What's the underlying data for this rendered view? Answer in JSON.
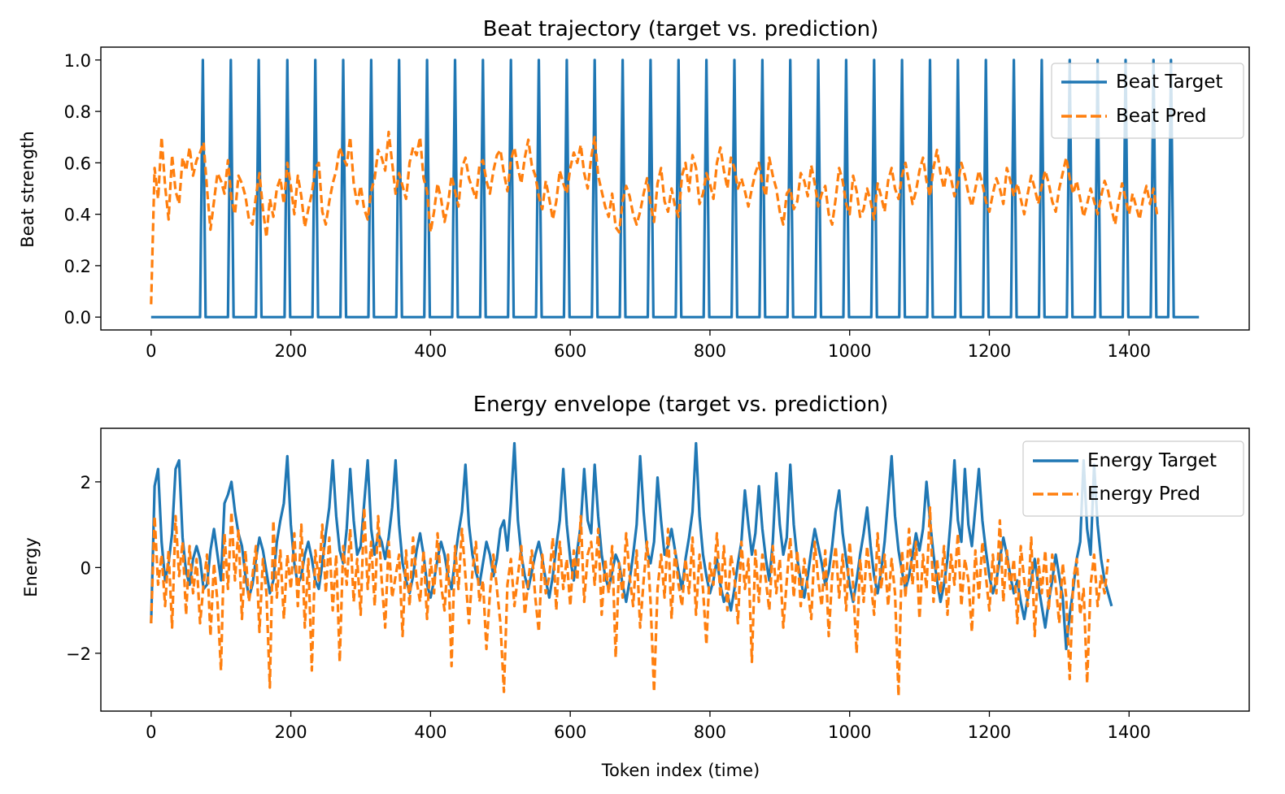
{
  "chart_data": [
    {
      "type": "line",
      "title": "Beat trajectory (target vs. prediction)",
      "xlabel": "",
      "ylabel": "Beat strength",
      "xlim": [
        -72,
        1572
      ],
      "ylim": [
        -0.05,
        1.05
      ],
      "x_ticks": [
        0,
        200,
        400,
        600,
        800,
        1000,
        1200,
        1400
      ],
      "y_ticks": [
        0.0,
        0.2,
        0.4,
        0.6,
        0.8,
        1.0
      ],
      "y_tick_labels": [
        "0.0",
        "0.2",
        "0.4",
        "0.6",
        "0.8",
        "1.0"
      ],
      "grid": false,
      "legend_position": "top-right",
      "target": {
        "name": "Beat Target",
        "color": "#1f77b4",
        "style": "solid",
        "baseline": 0.0,
        "peak": 1.0,
        "peak_x": [
          74,
          114,
          154,
          195,
          235,
          275,
          315,
          355,
          395,
          435,
          475,
          515,
          555,
          595,
          635,
          675,
          715,
          755,
          795,
          835,
          875,
          915,
          955,
          995,
          1035,
          1075,
          1115,
          1155,
          1195,
          1235,
          1275,
          1315,
          1355,
          1395,
          1435,
          1460
        ],
        "x_end": 1500
      },
      "prediction": {
        "name": "Beat Pred",
        "color": "#ff7f0e",
        "style": "dashed",
        "x_step": 5,
        "values": [
          0.05,
          0.58,
          0.46,
          0.7,
          0.51,
          0.38,
          0.63,
          0.49,
          0.44,
          0.62,
          0.57,
          0.66,
          0.55,
          0.61,
          0.64,
          0.68,
          0.5,
          0.34,
          0.45,
          0.56,
          0.53,
          0.48,
          0.61,
          0.46,
          0.4,
          0.55,
          0.52,
          0.47,
          0.38,
          0.36,
          0.47,
          0.56,
          0.42,
          0.31,
          0.46,
          0.39,
          0.5,
          0.54,
          0.44,
          0.6,
          0.51,
          0.4,
          0.55,
          0.47,
          0.35,
          0.42,
          0.48,
          0.58,
          0.6,
          0.41,
          0.36,
          0.45,
          0.52,
          0.57,
          0.66,
          0.62,
          0.59,
          0.7,
          0.52,
          0.44,
          0.51,
          0.42,
          0.38,
          0.49,
          0.54,
          0.65,
          0.62,
          0.57,
          0.72,
          0.6,
          0.48,
          0.56,
          0.51,
          0.46,
          0.6,
          0.66,
          0.63,
          0.7,
          0.54,
          0.49,
          0.33,
          0.41,
          0.52,
          0.46,
          0.37,
          0.44,
          0.55,
          0.49,
          0.43,
          0.58,
          0.62,
          0.54,
          0.5,
          0.46,
          0.59,
          0.61,
          0.53,
          0.48,
          0.57,
          0.63,
          0.65,
          0.56,
          0.49,
          0.61,
          0.66,
          0.58,
          0.52,
          0.62,
          0.69,
          0.59,
          0.55,
          0.47,
          0.42,
          0.53,
          0.46,
          0.38,
          0.45,
          0.57,
          0.52,
          0.48,
          0.58,
          0.64,
          0.6,
          0.67,
          0.56,
          0.5,
          0.62,
          0.7,
          0.55,
          0.49,
          0.43,
          0.39,
          0.48,
          0.35,
          0.33,
          0.45,
          0.51,
          0.47,
          0.4,
          0.36,
          0.41,
          0.48,
          0.54,
          0.44,
          0.37,
          0.52,
          0.58,
          0.45,
          0.41,
          0.5,
          0.43,
          0.39,
          0.55,
          0.6,
          0.49,
          0.63,
          0.58,
          0.44,
          0.48,
          0.56,
          0.52,
          0.46,
          0.6,
          0.66,
          0.57,
          0.5,
          0.62,
          0.58,
          0.5,
          0.54,
          0.49,
          0.43,
          0.5,
          0.56,
          0.6,
          0.52,
          0.47,
          0.62,
          0.55,
          0.5,
          0.41,
          0.36,
          0.48,
          0.5,
          0.42,
          0.45,
          0.56,
          0.53,
          0.47,
          0.59,
          0.52,
          0.43,
          0.48,
          0.51,
          0.4,
          0.36,
          0.46,
          0.58,
          0.53,
          0.44,
          0.4,
          0.55,
          0.49,
          0.39,
          0.42,
          0.5,
          0.45,
          0.38,
          0.52,
          0.47,
          0.41,
          0.53,
          0.58,
          0.5,
          0.46,
          0.55,
          0.6,
          0.52,
          0.44,
          0.49,
          0.57,
          0.62,
          0.53,
          0.47,
          0.58,
          0.65,
          0.56,
          0.5,
          0.59,
          0.54,
          0.47,
          0.52,
          0.6,
          0.55,
          0.48,
          0.43,
          0.5,
          0.57,
          0.52,
          0.45,
          0.41,
          0.48,
          0.54,
          0.5,
          0.44,
          0.58,
          0.53,
          0.47,
          0.52,
          0.46,
          0.4,
          0.48,
          0.55,
          0.5,
          0.44,
          0.51,
          0.57,
          0.52,
          0.45,
          0.41,
          0.5,
          0.56,
          0.62,
          0.54,
          0.48,
          0.53,
          0.46,
          0.39,
          0.44,
          0.5,
          0.45,
          0.4,
          0.47,
          0.53,
          0.49,
          0.42,
          0.36,
          0.45,
          0.52,
          0.46,
          0.4,
          0.48,
          0.43,
          0.38,
          0.46,
          0.51,
          0.44,
          0.5,
          0.4
        ]
      }
    },
    {
      "type": "line",
      "title": "Energy envelope (target vs. prediction)",
      "xlabel": "Token index (time)",
      "ylabel": "Energy",
      "xlim": [
        -72,
        1572
      ],
      "ylim": [
        -3.35,
        3.25
      ],
      "x_ticks": [
        0,
        200,
        400,
        600,
        800,
        1000,
        1200,
        1400
      ],
      "y_ticks": [
        -2,
        0,
        2
      ],
      "y_tick_labels": [
        "−2",
        "0",
        "2"
      ],
      "grid": false,
      "legend_position": "top-right",
      "target": {
        "name": "Energy Target",
        "color": "#1f77b4",
        "style": "solid",
        "x_step": 5,
        "values": [
          -1.3,
          1.9,
          2.3,
          0.6,
          -0.3,
          0.1,
          0.8,
          2.3,
          2.5,
          0.7,
          -0.1,
          -0.4,
          0.2,
          0.5,
          0.2,
          -0.5,
          -0.4,
          0.4,
          0.9,
          0.3,
          -0.3,
          1.5,
          1.7,
          2.0,
          1.3,
          0.8,
          0.5,
          -0.2,
          -0.7,
          -0.4,
          0.2,
          0.7,
          0.4,
          -0.1,
          -0.6,
          -0.3,
          0.6,
          1.1,
          1.5,
          2.6,
          1.0,
          0.1,
          -0.4,
          -0.2,
          0.3,
          0.6,
          0.2,
          -0.3,
          -0.5,
          0.1,
          0.8,
          1.4,
          2.5,
          1.2,
          0.4,
          0.1,
          0.9,
          2.3,
          1.1,
          0.3,
          0.5,
          1.5,
          2.5,
          0.9,
          0.3,
          0.8,
          0.6,
          0.2,
          0.7,
          1.4,
          2.5,
          1.0,
          0.1,
          -0.3,
          -0.6,
          -0.2,
          0.4,
          0.8,
          0.3,
          -0.4,
          -0.7,
          -0.3,
          0.2,
          0.6,
          0.3,
          -0.2,
          -0.5,
          0.2,
          0.8,
          1.3,
          2.4,
          1.0,
          0.3,
          -0.1,
          -0.4,
          0.1,
          0.6,
          0.3,
          -0.2,
          0.2,
          0.9,
          1.1,
          0.4,
          1.5,
          2.9,
          1.1,
          0.3,
          -0.2,
          -0.5,
          -0.1,
          0.3,
          0.6,
          0.2,
          -0.3,
          -0.7,
          -0.2,
          0.5,
          1.1,
          2.3,
          1.0,
          0.2,
          -0.3,
          0.4,
          1.0,
          2.3,
          1.1,
          0.8,
          2.4,
          1.2,
          0.3,
          -0.2,
          -0.5,
          -0.1,
          0.3,
          0.1,
          -0.4,
          -0.8,
          -0.3,
          0.3,
          1.0,
          2.6,
          1.3,
          0.4,
          0.1,
          0.6,
          2.1,
          1.1,
          0.3,
          0.5,
          0.9,
          0.4,
          -0.1,
          -0.5,
          0.2,
          0.7,
          1.3,
          2.9,
          1.2,
          0.3,
          -0.2,
          -0.6,
          -0.3,
          0.2,
          -0.4,
          -0.8,
          -0.6,
          -1.0,
          -0.5,
          0.1,
          0.6,
          1.8,
          1.0,
          0.3,
          0.8,
          1.9,
          0.9,
          0.2,
          -0.3,
          0.6,
          2.2,
          1.0,
          0.3,
          0.7,
          2.4,
          1.0,
          0.2,
          -0.3,
          -0.7,
          -0.2,
          0.4,
          0.9,
          0.5,
          0.1,
          -0.4,
          -0.1,
          0.5,
          1.3,
          1.8,
          0.8,
          0.2,
          -0.4,
          -0.8,
          -0.3,
          0.3,
          0.8,
          1.4,
          0.5,
          -0.2,
          -0.6,
          -0.1,
          0.6,
          1.6,
          2.6,
          1.2,
          0.4,
          -0.1,
          -0.5,
          -0.2,
          0.3,
          0.8,
          0.4,
          0.9,
          2.0,
          1.1,
          0.3,
          -0.3,
          -0.8,
          -0.4,
          0.2,
          1.2,
          2.5,
          1.1,
          0.6,
          2.3,
          1.0,
          0.5,
          1.4,
          2.3,
          1.1,
          0.4,
          -0.2,
          -0.6,
          -0.3,
          0.2,
          0.7,
          0.3,
          -0.2,
          -0.6,
          -0.3,
          -0.8,
          -1.2,
          -0.7,
          -0.3,
          0.2,
          -0.4,
          -0.9,
          -1.4,
          -0.8,
          -0.3,
          0.3,
          -0.2,
          -0.7,
          -1.9,
          -1.1,
          -0.5,
          0.2,
          0.6,
          2.5,
          0.9,
          0.3,
          2.4,
          1.0,
          0.2,
          -0.3,
          -0.6,
          -0.9
        ]
      },
      "prediction": {
        "name": "Energy Pred",
        "color": "#ff7f0e",
        "style": "dashed",
        "x_step": 5,
        "values": [
          -1.3,
          1.2,
          -0.4,
          0.3,
          -0.9,
          0.4,
          -1.4,
          1.2,
          -0.2,
          0.6,
          -1.1,
          0.5,
          -0.6,
          0.2,
          -1.3,
          -0.4,
          0.3,
          -1.6,
          0.1,
          -0.8,
          -2.4,
          0.8,
          -0.5,
          1.3,
          -0.3,
          0.9,
          -1.2,
          0.4,
          -0.8,
          -0.2,
          0.5,
          -1.5,
          0.2,
          -0.6,
          -2.8,
          1.1,
          -0.7,
          0.4,
          -1.2,
          0.3,
          -0.5,
          0.8,
          -0.9,
          1.0,
          -1.4,
          0.2,
          -2.4,
          0.4,
          -0.3,
          1.0,
          -0.6,
          0.7,
          -1.0,
          0.3,
          -2.2,
          0.5,
          -0.4,
          0.9,
          -0.8,
          0.2,
          -1.1,
          1.4,
          -0.5,
          0.6,
          -0.9,
          1.2,
          -0.3,
          -1.4,
          0.6,
          -0.7,
          -0.2,
          0.3,
          -1.6,
          0.4,
          -0.9,
          0.7,
          -0.3,
          -0.8,
          0.4,
          -1.2,
          0.2,
          -0.6,
          0.8,
          -0.4,
          -1.0,
          0.3,
          -2.3,
          0.5,
          -0.5,
          0.9,
          -0.2,
          -1.3,
          -0.1,
          0.6,
          -0.8,
          -0.3,
          -1.9,
          -0.6,
          0.3,
          -0.5,
          -1.3,
          -2.9,
          -0.4,
          0.2,
          -0.9,
          -0.2,
          0.5,
          -1.1,
          -0.3,
          0.4,
          -0.7,
          -1.5,
          0.3,
          -0.6,
          -0.2,
          0.7,
          -1.0,
          0.6,
          -0.5,
          0.2,
          -0.9,
          0.4,
          -0.3,
          1.2,
          -0.8,
          0.3,
          0.6,
          -0.4,
          0.9,
          -1.1,
          0.2,
          -0.6,
          0.5,
          -2.1,
          0.1,
          -0.7,
          0.8,
          -0.2,
          -0.9,
          0.4,
          -1.4,
          -0.3,
          0.6,
          -0.8,
          -2.9,
          -0.5,
          0.3,
          -0.7,
          0.9,
          -1.2,
          0.4,
          -0.4,
          -0.9,
          0.2,
          -0.6,
          0.7,
          -1.1,
          0.3,
          -0.5,
          -1.8,
          0.1,
          -0.4,
          0.8,
          -0.7,
          0.5,
          -1.0,
          0.3,
          -0.2,
          -1.3,
          0.6,
          -0.5,
          0.2,
          -2.2,
          0.4,
          -0.8,
          0.3,
          -0.3,
          -1.0,
          0.5,
          -0.6,
          0.2,
          -1.4,
          -0.3,
          0.7,
          -0.7,
          0.4,
          -0.9,
          0.2,
          -0.5,
          -1.2,
          0.6,
          -0.3,
          -0.9,
          0.4,
          -1.6,
          -0.2,
          0.5,
          -0.7,
          0.3,
          -1.0,
          0.6,
          -0.4,
          -2.0,
          0.2,
          -0.8,
          0.5,
          -0.3,
          -1.1,
          0.8,
          -0.5,
          0.3,
          -0.9,
          0.2,
          -0.6,
          -3.0,
          0.4,
          -0.7,
          0.9,
          -0.4,
          0.6,
          -1.2,
          0.3,
          -0.5,
          1.4,
          -0.8,
          0.2,
          -0.6,
          0.5,
          -1.1,
          0.3,
          -0.4,
          0.8,
          -0.9,
          0.2,
          -0.3,
          -1.5,
          0.4,
          -0.7,
          0.6,
          -0.2,
          -1.0,
          0.3,
          -0.6,
          1.1,
          -0.8,
          0.4,
          -0.5,
          0.2,
          -1.3,
          0.5,
          -0.3,
          -0.9,
          0.7,
          -1.6,
          0.2,
          -0.6,
          0.4,
          -1.0,
          0.3,
          -0.4,
          -1.3,
          0.1,
          -0.7,
          -2.6,
          -0.3,
          0.2,
          -1.1,
          -0.5,
          -2.7,
          -0.4,
          0.3,
          -0.9,
          -0.2,
          -0.6,
          0.2
        ]
      }
    }
  ]
}
